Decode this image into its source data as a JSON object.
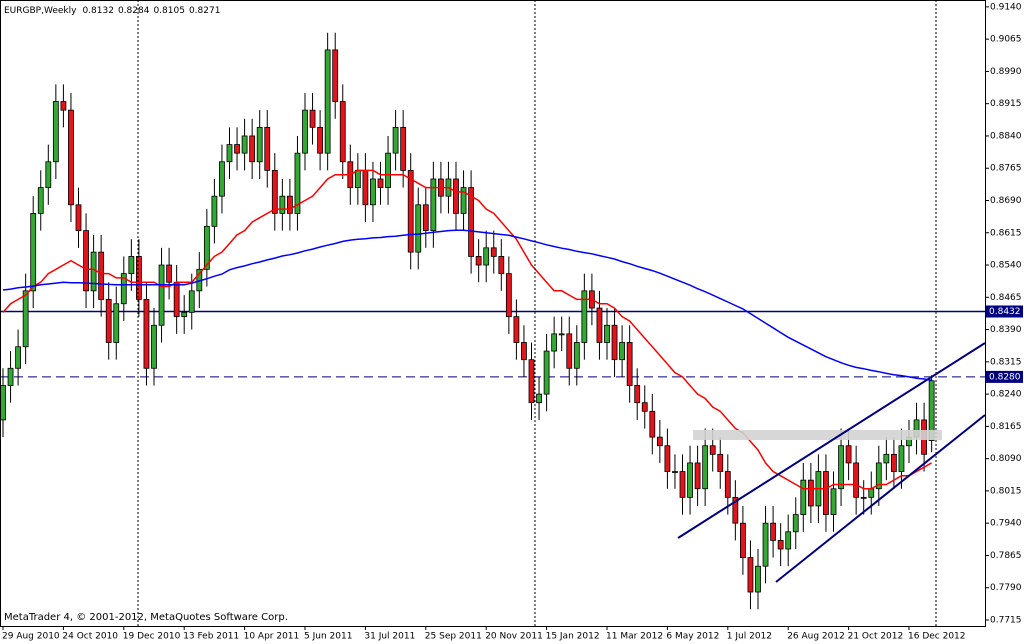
{
  "chart_data": {
    "type": "candlestick",
    "title": "EURGBP,Weekly",
    "footer": "MetaTrader 4, © 2001-2012, MetaQuotes Software Corp.",
    "up_color": "#33a833",
    "down_color": "#e3141c",
    "grid": false,
    "ylim": [
      0.7701,
      0.9156
    ],
    "yticks": [
      {
        "value": 0.914,
        "label": "0.9140"
      },
      0.9065,
      {
        "value": 0.899,
        "label": "0.8990"
      },
      0.8915,
      {
        "value": 0.884,
        "label": "0.8840"
      },
      0.8765,
      {
        "value": 0.869,
        "label": "0.8690"
      },
      0.8615,
      {
        "value": 0.854,
        "label": "0.8540"
      },
      0.8465,
      {
        "value": 0.839,
        "label": "0.8390"
      },
      0.8315,
      {
        "value": 0.824,
        "label": "0.8240"
      },
      0.8165,
      {
        "value": 0.809,
        "label": "0.8090"
      },
      0.8015,
      {
        "value": 0.794,
        "label": "0.7940"
      },
      0.7865,
      {
        "value": 0.779,
        "label": "0.7790"
      },
      0.7715
    ],
    "categories": [
      "29 Aug 2010",
      null,
      null,
      null,
      null,
      null,
      null,
      null,
      "24 Oct 2010",
      null,
      null,
      null,
      null,
      null,
      null,
      null,
      "19 Dec 2010",
      null,
      null,
      null,
      null,
      null,
      null,
      null,
      "13 Feb 2011",
      null,
      null,
      null,
      null,
      null,
      null,
      null,
      "10 Apr 2011",
      null,
      null,
      null,
      null,
      null,
      null,
      null,
      "5 Jun 2011",
      null,
      null,
      null,
      null,
      null,
      null,
      null,
      "31 Jul 2011",
      null,
      null,
      null,
      null,
      null,
      null,
      null,
      "25 Sep 2011",
      null,
      null,
      null,
      null,
      null,
      null,
      null,
      "20 Nov 2011",
      null,
      null,
      null,
      null,
      null,
      null,
      null,
      "15 Jan 2012",
      null,
      null,
      null,
      null,
      null,
      null,
      null,
      "11 Mar 2012",
      null,
      null,
      null,
      null,
      null,
      null,
      null,
      "6 May 2012",
      null,
      null,
      null,
      null,
      null,
      null,
      null,
      "1 Jul 2012",
      null,
      null,
      null,
      null,
      null,
      null,
      null,
      "26 Aug 2012",
      null,
      null,
      null,
      null,
      null,
      null,
      null,
      "21 Oct 2012",
      null,
      null,
      null,
      null,
      null,
      null,
      null,
      "16 Dec 2012",
      null,
      null,
      null
    ],
    "open": [
      0.818,
      0.826,
      0.83,
      0.835,
      0.848,
      0.866,
      0.872,
      0.878,
      0.892,
      0.89,
      0.868,
      0.862,
      0.848,
      0.857,
      0.846,
      0.836,
      0.845,
      0.852,
      0.856,
      0.846,
      0.83,
      0.84,
      0.854,
      0.85,
      0.842,
      0.843,
      0.848,
      0.853,
      0.863,
      0.87,
      0.878,
      0.882,
      0.88,
      0.884,
      0.878,
      0.886,
      0.876,
      0.866,
      0.87,
      0.866,
      0.88,
      0.89,
      0.886,
      0.88,
      0.904,
      0.892,
      0.878,
      0.872,
      0.876,
      0.868,
      0.874,
      0.872,
      0.88,
      0.886,
      0.876,
      0.857,
      0.868,
      0.862,
      0.874,
      0.87,
      0.874,
      0.866,
      0.872,
      0.856,
      0.854,
      0.858,
      0.856,
      0.852,
      0.842,
      0.836,
      0.832,
      0.822,
      0.824,
      0.834,
      0.838,
      0.838,
      0.83,
      0.836,
      0.848,
      0.844,
      0.836,
      0.84,
      0.832,
      0.836,
      0.826,
      0.822,
      0.82,
      0.814,
      0.812,
      0.806,
      0.806,
      0.8,
      0.808,
      0.802,
      0.812,
      0.81,
      0.806,
      0.8,
      0.794,
      0.786,
      0.778,
      0.784,
      0.794,
      0.79,
      0.788,
      0.792,
      0.796,
      0.804,
      0.798,
      0.806,
      0.796,
      0.802,
      0.812,
      0.808,
      0.8,
      0.8,
      0.802,
      0.808,
      0.81,
      0.806,
      0.812,
      0.814,
      0.818,
      0.8132
    ],
    "high": [
      0.83,
      0.834,
      0.839,
      0.852,
      0.87,
      0.876,
      0.882,
      0.896,
      0.896,
      0.894,
      0.872,
      0.866,
      0.861,
      0.861,
      0.85,
      0.849,
      0.856,
      0.86,
      0.86,
      0.85,
      0.844,
      0.858,
      0.858,
      0.854,
      0.847,
      0.852,
      0.857,
      0.867,
      0.874,
      0.882,
      0.886,
      0.886,
      0.888,
      0.888,
      0.89,
      0.89,
      0.88,
      0.874,
      0.874,
      0.884,
      0.894,
      0.894,
      0.89,
      0.908,
      0.908,
      0.896,
      0.882,
      0.88,
      0.88,
      0.878,
      0.878,
      0.884,
      0.89,
      0.89,
      0.88,
      0.872,
      0.872,
      0.878,
      0.878,
      0.878,
      0.878,
      0.876,
      0.876,
      0.86,
      0.862,
      0.862,
      0.86,
      0.856,
      0.846,
      0.84,
      0.836,
      0.828,
      0.838,
      0.842,
      0.842,
      0.842,
      0.84,
      0.852,
      0.852,
      0.848,
      0.844,
      0.844,
      0.84,
      0.84,
      0.83,
      0.826,
      0.824,
      0.818,
      0.816,
      0.81,
      0.81,
      0.812,
      0.812,
      0.816,
      0.816,
      0.814,
      0.81,
      0.804,
      0.798,
      0.79,
      0.788,
      0.798,
      0.798,
      0.794,
      0.796,
      0.8,
      0.808,
      0.808,
      0.81,
      0.81,
      0.806,
      0.816,
      0.816,
      0.812,
      0.804,
      0.806,
      0.812,
      0.814,
      0.814,
      0.816,
      0.818,
      0.822,
      0.822,
      0.8284
    ],
    "low": [
      0.814,
      0.822,
      0.826,
      0.831,
      0.844,
      0.862,
      0.868,
      0.874,
      0.886,
      0.864,
      0.858,
      0.844,
      0.844,
      0.842,
      0.832,
      0.832,
      0.841,
      0.848,
      0.842,
      0.826,
      0.826,
      0.836,
      0.846,
      0.838,
      0.838,
      0.839,
      0.844,
      0.849,
      0.859,
      0.866,
      0.874,
      0.876,
      0.876,
      0.874,
      0.874,
      0.872,
      0.862,
      0.862,
      0.862,
      0.862,
      0.876,
      0.882,
      0.876,
      0.876,
      0.888,
      0.874,
      0.868,
      0.868,
      0.864,
      0.864,
      0.868,
      0.868,
      0.876,
      0.872,
      0.853,
      0.853,
      0.858,
      0.858,
      0.866,
      0.866,
      0.862,
      0.862,
      0.852,
      0.85,
      0.85,
      0.852,
      0.848,
      0.838,
      0.832,
      0.828,
      0.818,
      0.818,
      0.82,
      0.83,
      0.834,
      0.826,
      0.826,
      0.832,
      0.84,
      0.832,
      0.832,
      0.828,
      0.828,
      0.822,
      0.818,
      0.816,
      0.81,
      0.808,
      0.802,
      0.802,
      0.796,
      0.796,
      0.798,
      0.798,
      0.806,
      0.802,
      0.796,
      0.79,
      0.782,
      0.774,
      0.774,
      0.78,
      0.786,
      0.784,
      0.784,
      0.788,
      0.792,
      0.794,
      0.794,
      0.792,
      0.792,
      0.798,
      0.804,
      0.796,
      0.796,
      0.796,
      0.798,
      0.804,
      0.802,
      0.802,
      0.808,
      0.81,
      0.806,
      0.8105
    ],
    "close": [
      0.826,
      0.83,
      0.835,
      0.848,
      0.866,
      0.872,
      0.878,
      0.892,
      0.89,
      0.868,
      0.862,
      0.848,
      0.857,
      0.846,
      0.836,
      0.845,
      0.852,
      0.856,
      0.846,
      0.83,
      0.84,
      0.854,
      0.85,
      0.842,
      0.843,
      0.848,
      0.853,
      0.863,
      0.87,
      0.878,
      0.882,
      0.88,
      0.884,
      0.878,
      0.886,
      0.876,
      0.866,
      0.87,
      0.866,
      0.88,
      0.89,
      0.886,
      0.88,
      0.904,
      0.892,
      0.878,
      0.872,
      0.876,
      0.868,
      0.874,
      0.872,
      0.88,
      0.886,
      0.876,
      0.857,
      0.868,
      0.862,
      0.874,
      0.87,
      0.874,
      0.866,
      0.872,
      0.856,
      0.854,
      0.858,
      0.856,
      0.852,
      0.842,
      0.836,
      0.832,
      0.822,
      0.824,
      0.834,
      0.838,
      0.838,
      0.83,
      0.836,
      0.848,
      0.844,
      0.836,
      0.84,
      0.832,
      0.836,
      0.826,
      0.822,
      0.82,
      0.814,
      0.812,
      0.806,
      0.806,
      0.8,
      0.808,
      0.802,
      0.812,
      0.81,
      0.806,
      0.8,
      0.794,
      0.786,
      0.778,
      0.784,
      0.794,
      0.79,
      0.788,
      0.792,
      0.796,
      0.804,
      0.798,
      0.806,
      0.796,
      0.802,
      0.812,
      0.808,
      0.8,
      0.8,
      0.802,
      0.808,
      0.81,
      0.806,
      0.812,
      0.814,
      0.818,
      0.81,
      0.8271
    ],
    "series": [
      {
        "color": "#ff0000",
        "values": [
          0.843,
          0.845,
          0.846,
          0.847,
          0.849,
          0.85,
          0.852,
          0.853,
          0.854,
          0.855,
          0.854,
          0.853,
          0.853,
          0.852,
          0.852,
          0.851,
          0.851,
          0.85,
          0.85,
          0.85,
          0.85,
          0.849,
          0.849,
          0.85,
          0.85,
          0.85,
          0.852,
          0.854,
          0.856,
          0.857,
          0.859,
          0.861,
          0.862,
          0.864,
          0.865,
          0.866,
          0.867,
          0.867,
          0.867,
          0.868,
          0.869,
          0.87,
          0.872,
          0.874,
          0.875,
          0.875,
          0.875,
          0.876,
          0.876,
          0.876,
          0.875,
          0.875,
          0.875,
          0.875,
          0.874,
          0.873,
          0.872,
          0.872,
          0.872,
          0.872,
          0.871,
          0.871,
          0.87,
          0.869,
          0.867,
          0.866,
          0.864,
          0.862,
          0.86,
          0.857,
          0.854,
          0.852,
          0.85,
          0.848,
          0.848,
          0.847,
          0.846,
          0.846,
          0.846,
          0.845,
          0.845,
          0.844,
          0.842,
          0.841,
          0.839,
          0.837,
          0.835,
          0.833,
          0.831,
          0.829,
          0.828,
          0.826,
          0.824,
          0.823,
          0.821,
          0.82,
          0.818,
          0.816,
          0.815,
          0.813,
          0.811,
          0.808,
          0.806,
          0.805,
          0.804,
          0.803,
          0.802,
          0.802,
          0.802,
          0.802,
          0.803,
          0.803,
          0.803,
          0.803,
          0.802,
          0.802,
          0.803,
          0.803,
          0.804,
          0.805,
          0.805,
          0.806,
          0.807,
          0.808
        ]
      },
      {
        "color": "#0000ff",
        "values": [
          0.8482,
          0.8484,
          0.8487,
          0.8489,
          0.8491,
          0.8494,
          0.8496,
          0.8498,
          0.85,
          0.8499,
          0.8499,
          0.8498,
          0.8497,
          0.8496,
          0.8495,
          0.8494,
          0.8494,
          0.8494,
          0.8494,
          0.8494,
          0.8494,
          0.8494,
          0.8494,
          0.8494,
          0.8494,
          0.8498,
          0.8503,
          0.8508,
          0.8514,
          0.8519,
          0.8529,
          0.8534,
          0.8538,
          0.8543,
          0.8547,
          0.8552,
          0.8556,
          0.8561,
          0.8564,
          0.8568,
          0.8573,
          0.8577,
          0.8582,
          0.8586,
          0.859,
          0.8595,
          0.8598,
          0.86,
          0.8601,
          0.8603,
          0.8604,
          0.8606,
          0.8607,
          0.8609,
          0.8611,
          0.8612,
          0.8614,
          0.8616,
          0.8618,
          0.862,
          0.8621,
          0.8621,
          0.8619,
          0.8617,
          0.8615,
          0.8613,
          0.8611,
          0.8609,
          0.8605,
          0.8601,
          0.8596,
          0.8592,
          0.8587,
          0.8583,
          0.8579,
          0.8576,
          0.8572,
          0.8569,
          0.8566,
          0.8562,
          0.8558,
          0.8554,
          0.8548,
          0.8543,
          0.8537,
          0.8532,
          0.8527,
          0.8521,
          0.8514,
          0.8507,
          0.85,
          0.8493,
          0.8485,
          0.8478,
          0.847,
          0.8462,
          0.8454,
          0.8446,
          0.8438,
          0.8427,
          0.8416,
          0.8405,
          0.8394,
          0.8383,
          0.8372,
          0.8363,
          0.8354,
          0.8345,
          0.8336,
          0.8327,
          0.832,
          0.8313,
          0.8307,
          0.8302,
          0.8299,
          0.8295,
          0.8292,
          0.8288,
          0.8285,
          0.8283,
          0.828,
          0.8277,
          0.8275,
          0.8272
        ]
      }
    ],
    "hlines": [
      {
        "value": 0.8432,
        "color": "#000080"
      },
      {
        "value": 0.828,
        "label": "0.8280",
        "color": "#000080",
        "dashed": true
      }
    ]
  }
}
